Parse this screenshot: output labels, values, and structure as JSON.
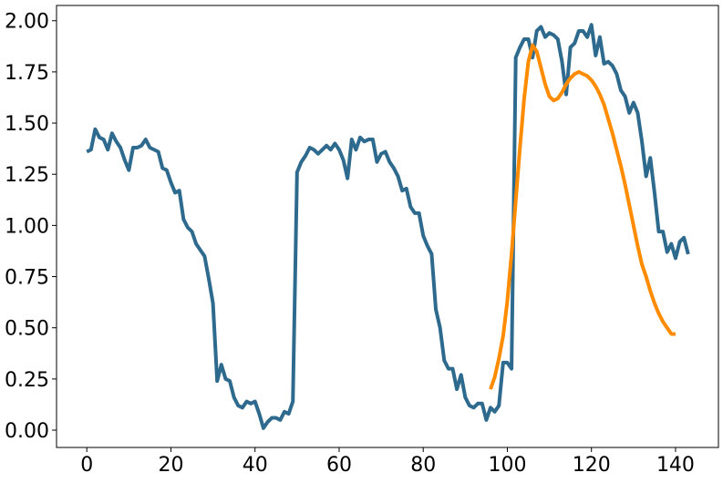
{
  "chart_data": {
    "type": "line",
    "title": "",
    "xlabel": "",
    "ylabel": "",
    "xlim": [
      -7.2,
      150.2
    ],
    "ylim": [
      -0.0845,
      2.0745
    ],
    "grid": false,
    "legend": "none",
    "x_ticks": [
      0,
      20,
      40,
      60,
      80,
      100,
      120,
      140
    ],
    "x_tick_labels": [
      "0",
      "20",
      "40",
      "60",
      "80",
      "100",
      "120",
      "140"
    ],
    "y_ticks": [
      0.0,
      0.25,
      0.5,
      0.75,
      1.0,
      1.25,
      1.5,
      1.75,
      2.0
    ],
    "y_tick_labels": [
      "0.00",
      "0.25",
      "0.50",
      "0.75",
      "1.00",
      "1.25",
      "1.50",
      "1.75",
      "2.00"
    ],
    "series": [
      {
        "color": "#2e6a8e",
        "x_start": 0,
        "x_step": 1,
        "values": [
          1.36,
          1.37,
          1.47,
          1.43,
          1.42,
          1.37,
          1.45,
          1.41,
          1.38,
          1.32,
          1.27,
          1.38,
          1.38,
          1.39,
          1.42,
          1.38,
          1.37,
          1.36,
          1.28,
          1.27,
          1.21,
          1.16,
          1.17,
          1.03,
          0.99,
          0.97,
          0.91,
          0.88,
          0.85,
          0.74,
          0.62,
          0.24,
          0.32,
          0.25,
          0.24,
          0.16,
          0.12,
          0.11,
          0.14,
          0.13,
          0.14,
          0.08,
          0.01,
          0.04,
          0.06,
          0.06,
          0.05,
          0.09,
          0.08,
          0.14,
          1.26,
          1.31,
          1.34,
          1.38,
          1.37,
          1.35,
          1.37,
          1.39,
          1.37,
          1.4,
          1.37,
          1.32,
          1.23,
          1.42,
          1.37,
          1.43,
          1.41,
          1.42,
          1.42,
          1.31,
          1.35,
          1.36,
          1.31,
          1.28,
          1.24,
          1.17,
          1.18,
          1.09,
          1.06,
          1.06,
          0.95,
          0.9,
          0.86,
          0.59,
          0.5,
          0.34,
          0.3,
          0.3,
          0.2,
          0.27,
          0.16,
          0.12,
          0.11,
          0.13,
          0.13,
          0.05,
          0.11,
          0.09,
          0.12,
          0.33,
          0.33,
          0.3,
          1.82,
          1.87,
          1.91,
          1.91,
          1.82,
          1.95,
          1.97,
          1.92,
          1.94,
          1.93,
          1.91,
          1.8,
          1.64,
          1.87,
          1.89,
          1.95,
          1.95,
          1.92,
          1.98,
          1.83,
          1.92,
          1.79,
          1.8,
          1.78,
          1.74,
          1.66,
          1.63,
          1.55,
          1.6,
          1.55,
          1.41,
          1.24,
          1.33,
          1.16,
          0.97,
          0.97,
          0.87,
          0.91,
          0.84,
          0.92,
          0.94,
          0.86
        ]
      },
      {
        "color": "#ff8c00",
        "x_start": 96,
        "x_step": 1,
        "values": [
          0.2,
          0.26,
          0.35,
          0.46,
          0.63,
          0.86,
          1.12,
          1.38,
          1.62,
          1.8,
          1.88,
          1.85,
          1.77,
          1.69,
          1.63,
          1.61,
          1.62,
          1.65,
          1.69,
          1.72,
          1.74,
          1.75,
          1.74,
          1.73,
          1.71,
          1.68,
          1.64,
          1.59,
          1.52,
          1.45,
          1.37,
          1.29,
          1.2,
          1.1,
          1.0,
          0.9,
          0.81,
          0.75,
          0.68,
          0.62,
          0.57,
          0.53,
          0.5,
          0.47,
          0.47
        ]
      }
    ]
  }
}
